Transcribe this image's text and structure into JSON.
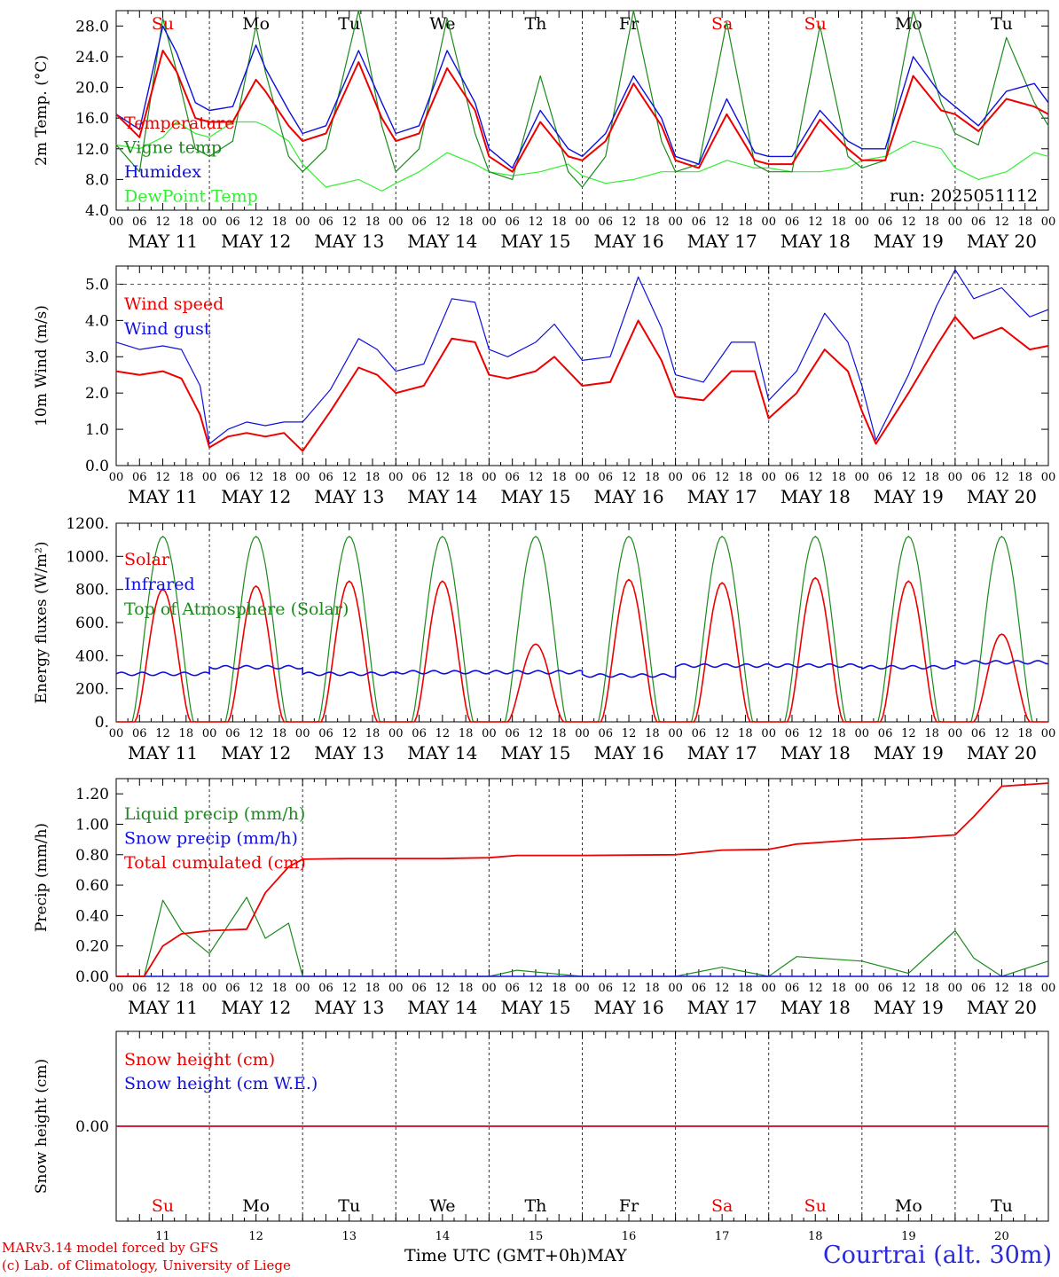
{
  "x_axis": {
    "hour_ticks": [
      "00",
      "06",
      "12",
      "18"
    ],
    "date_labels": [
      "MAY 11",
      "MAY 12",
      "MAY 13",
      "MAY 14",
      "MAY 15",
      "MAY 16",
      "MAY 17",
      "MAY 18",
      "MAY 19",
      "MAY 20"
    ],
    "day_names": [
      "Su",
      "Mo",
      "Tu",
      "We",
      "Th",
      "Fr",
      "Sa",
      "Su",
      "Mo",
      "Tu"
    ],
    "weekend_flags": [
      true,
      false,
      false,
      false,
      false,
      false,
      true,
      true,
      false,
      false
    ],
    "day_numbers": [
      "11",
      "12",
      "13",
      "14",
      "15",
      "16",
      "17",
      "18",
      "19",
      "20"
    ],
    "title": "Time UTC (GMT+0h)",
    "month": "MAY"
  },
  "credits": {
    "line1": "MARv3.14 model forced by GFS",
    "line2": "(c) Lab. of Climatology, University of Liege"
  },
  "station": "Courtrai (alt. 30m)",
  "colors": {
    "red": "#ee0000",
    "green": "#1b8a1b",
    "blue": "#1010dd",
    "lightgreen": "#33ee33",
    "grid": "#555555"
  },
  "chart_data": [
    {
      "type": "line",
      "ylabel": "2m Temp. (°C)",
      "ylim": [
        4,
        30
      ],
      "yticks": [
        "4.0",
        "8.0",
        "12.0",
        "16.0",
        "20.0",
        "24.0",
        "28.0"
      ],
      "ytick_values": [
        4,
        8,
        12,
        16,
        20,
        24,
        28
      ],
      "annotation": "run: 2025051112",
      "x_days": [
        0,
        0.25,
        0.5,
        0.65,
        0.85,
        1,
        1.25,
        1.5,
        1.6,
        1.85,
        2,
        2.25,
        2.6,
        2.85,
        3,
        3.25,
        3.55,
        3.85,
        4,
        4.25,
        4.55,
        4.85,
        5,
        5.25,
        5.55,
        5.85,
        6,
        6.25,
        6.55,
        6.85,
        7,
        7.25,
        7.55,
        7.85,
        8,
        8.25,
        8.55,
        8.85,
        9,
        9.25,
        9.55,
        9.85,
        10
      ],
      "series": [
        {
          "name": "Temperature",
          "color": "#ee0000",
          "values": [
            16.5,
            13.5,
            24.8,
            22.0,
            16.0,
            15.5,
            15.5,
            21.0,
            19.5,
            15.0,
            13.0,
            14.0,
            23.3,
            16.0,
            13.0,
            14.0,
            22.5,
            17.0,
            11.0,
            9.0,
            15.5,
            11.0,
            10.5,
            13.0,
            20.5,
            15.0,
            10.5,
            9.5,
            16.5,
            10.5,
            10.0,
            10.0,
            15.8,
            12.0,
            10.5,
            10.5,
            21.5,
            17.0,
            16.5,
            14.3,
            18.5,
            17.5,
            16.5
          ]
        },
        {
          "name": "Vigne temp",
          "color": "#1b8a1b",
          "values": [
            12.5,
            9.0,
            29.0,
            22.0,
            12.0,
            11.0,
            13.0,
            28.0,
            22.0,
            11.0,
            9.0,
            12.0,
            30.0,
            15.0,
            9.0,
            12.0,
            29.0,
            14.0,
            9.0,
            8.0,
            21.5,
            9.0,
            7.0,
            11.0,
            30.0,
            13.0,
            9.0,
            10.0,
            28.5,
            10.0,
            9.0,
            9.0,
            28.0,
            11.0,
            9.5,
            10.5,
            30.0,
            18.0,
            14.0,
            12.5,
            26.5,
            18.0,
            15.0
          ]
        },
        {
          "name": "Humidex",
          "color": "#1010dd",
          "values": [
            16.5,
            14.5,
            28.0,
            24.5,
            18.0,
            17.0,
            17.5,
            25.5,
            22.5,
            17.0,
            14.0,
            15.0,
            24.8,
            18.0,
            14.0,
            15.0,
            24.8,
            18.0,
            12.0,
            9.5,
            17.0,
            12.0,
            11.0,
            14.0,
            21.5,
            16.0,
            11.0,
            10.0,
            18.5,
            11.5,
            11.0,
            11.0,
            17.0,
            13.0,
            12.0,
            12.0,
            24.0,
            19.0,
            17.5,
            15.0,
            19.5,
            20.5,
            18.0
          ]
        },
        {
          "name": "DewPoint Temp",
          "color": "#33ee33",
          "values": [
            12.5,
            12.0,
            13.5,
            15.5,
            14.0,
            13.5,
            15.5,
            15.5,
            15.0,
            13.0,
            10.0,
            7.0,
            8.0,
            6.5,
            7.5,
            9.0,
            11.5,
            10.0,
            9.0,
            8.5,
            9.0,
            10.0,
            8.5,
            7.5,
            8.0,
            9.0,
            9.0,
            9.0,
            10.5,
            9.5,
            9.5,
            9.0,
            9.0,
            9.5,
            10.5,
            11.0,
            13.0,
            12.0,
            9.5,
            8.0,
            9.0,
            11.5,
            11.0
          ]
        }
      ]
    },
    {
      "type": "line",
      "ylabel": "10m Wind (m/s)",
      "ylim": [
        0,
        5.5
      ],
      "yticks": [
        "0.0",
        "1.0",
        "2.0",
        "3.0",
        "4.0",
        "5.0"
      ],
      "ytick_values": [
        0,
        1,
        2,
        3,
        4,
        5
      ],
      "ref_line": 5.0,
      "x_days": [
        0,
        0.25,
        0.5,
        0.7,
        0.9,
        1,
        1.2,
        1.4,
        1.6,
        1.8,
        2,
        2.3,
        2.6,
        2.8,
        3,
        3.3,
        3.6,
        3.85,
        4,
        4.2,
        4.5,
        4.7,
        5,
        5.3,
        5.6,
        5.85,
        6,
        6.3,
        6.6,
        6.85,
        7,
        7.3,
        7.6,
        7.85,
        8,
        8.15,
        8.5,
        8.8,
        9,
        9.2,
        9.5,
        9.8,
        10
      ],
      "series": [
        {
          "name": "Wind speed",
          "color": "#ee0000",
          "values": [
            2.6,
            2.5,
            2.6,
            2.4,
            1.4,
            0.5,
            0.8,
            0.9,
            0.8,
            0.9,
            0.4,
            1.5,
            2.7,
            2.5,
            2.0,
            2.2,
            3.5,
            3.4,
            2.5,
            2.4,
            2.6,
            3.0,
            2.2,
            2.3,
            4.0,
            2.9,
            1.9,
            1.8,
            2.6,
            2.6,
            1.3,
            2.0,
            3.2,
            2.6,
            1.5,
            0.6,
            2.0,
            3.3,
            4.1,
            3.5,
            3.8,
            3.2,
            3.3
          ]
        },
        {
          "name": "Wind gust",
          "color": "#1010dd",
          "values": [
            3.4,
            3.2,
            3.3,
            3.2,
            2.2,
            0.6,
            1.0,
            1.2,
            1.1,
            1.2,
            1.2,
            2.1,
            3.5,
            3.2,
            2.6,
            2.8,
            4.6,
            4.5,
            3.2,
            3.0,
            3.4,
            3.9,
            2.9,
            3.0,
            5.2,
            3.8,
            2.5,
            2.3,
            3.4,
            3.4,
            1.8,
            2.6,
            4.2,
            3.4,
            2.2,
            0.7,
            2.5,
            4.4,
            5.4,
            4.6,
            4.9,
            4.1,
            4.3
          ]
        }
      ]
    },
    {
      "type": "line",
      "ylabel": "Energy fluxes (W/m²)",
      "ylim": [
        0,
        1200
      ],
      "yticks": [
        "0.",
        "200.",
        "400.",
        "600.",
        "800.",
        "1000.",
        "1200."
      ],
      "ytick_values": [
        0,
        200,
        400,
        600,
        800,
        1000,
        1200
      ],
      "solar_peaks": [
        800,
        820,
        850,
        850,
        470,
        860,
        840,
        870,
        850,
        530
      ],
      "toa_peak": 1120,
      "infrared": [
        290,
        330,
        290,
        300,
        300,
        280,
        340,
        340,
        330,
        360
      ],
      "legend": [
        "Solar",
        "Infrared",
        "Top of Atmosphere (Solar)"
      ]
    },
    {
      "type": "line",
      "ylabel": "Precip (mm/h)",
      "ylim": [
        0,
        1.3
      ],
      "yticks": [
        "0.00",
        "0.20",
        "0.40",
        "0.60",
        "0.80",
        "1.00",
        "1.20"
      ],
      "ytick_values": [
        0,
        0.2,
        0.4,
        0.6,
        0.8,
        1.0,
        1.2
      ],
      "x_days": [
        0,
        0.3,
        0.5,
        0.7,
        1.0,
        1.4,
        1.6,
        1.85,
        2.0,
        2.5,
        3.0,
        3.5,
        4.0,
        4.3,
        5.0,
        6.0,
        6.5,
        7.0,
        7.3,
        8.0,
        8.5,
        9.0,
        9.2,
        9.5,
        10.0
      ],
      "series": [
        {
          "name": "Liquid precip (mm/h)",
          "color": "#1b8a1b",
          "values": [
            0,
            0,
            0.5,
            0.3,
            0.15,
            0.52,
            0.25,
            0.35,
            0,
            0,
            0,
            0,
            0,
            0.04,
            0,
            0,
            0.06,
            0,
            0.13,
            0.1,
            0.02,
            0.3,
            0.12,
            0,
            0.1
          ]
        },
        {
          "name": "Snow precip (mm/h)",
          "color": "#1010dd",
          "values": [
            0,
            0,
            0,
            0,
            0,
            0,
            0,
            0,
            0,
            0,
            0,
            0,
            0,
            0,
            0,
            0,
            0,
            0,
            0,
            0,
            0,
            0,
            0,
            0,
            0
          ]
        },
        {
          "name": "Total cumulated (cm)",
          "color": "#ee0000",
          "values": [
            0,
            0,
            0.2,
            0.28,
            0.3,
            0.31,
            0.55,
            0.72,
            0.77,
            0.775,
            0.775,
            0.775,
            0.78,
            0.795,
            0.795,
            0.8,
            0.83,
            0.835,
            0.87,
            0.9,
            0.91,
            0.93,
            1.05,
            1.25,
            1.27
          ]
        }
      ]
    },
    {
      "type": "line",
      "ylabel": "Snow height (cm)",
      "ylim": [
        -1,
        1
      ],
      "yticks": [
        "0.00"
      ],
      "ytick_values": [
        0
      ],
      "series": [
        {
          "name": "Snow height (cm)",
          "color": "#ee0000",
          "values": [
            0,
            0
          ]
        },
        {
          "name": "Snow height (cm W.E.)",
          "color": "#1010dd",
          "values": [
            0,
            0
          ]
        }
      ]
    }
  ]
}
